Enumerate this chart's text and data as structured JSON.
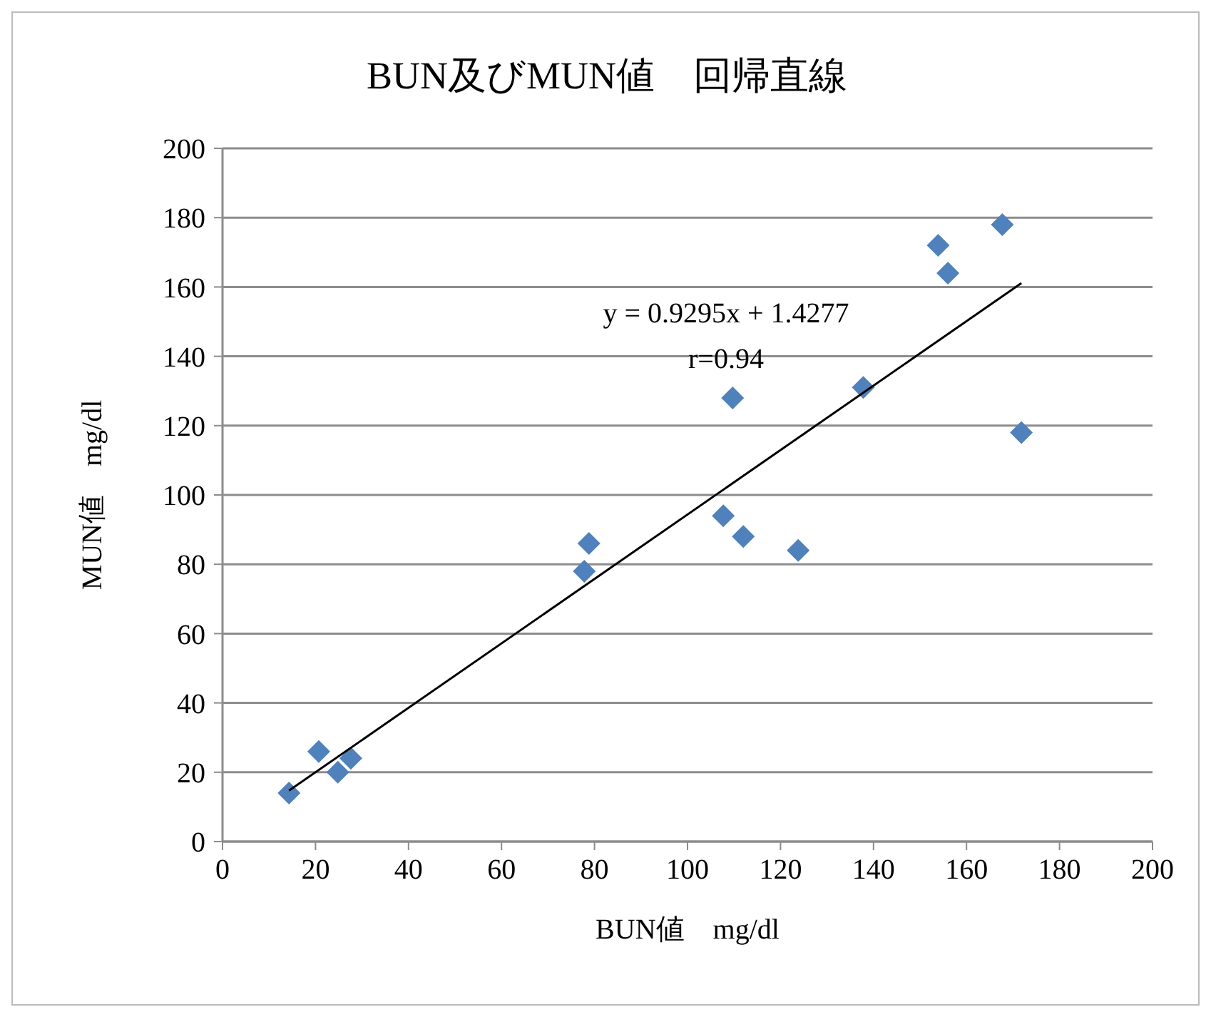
{
  "chart_data": {
    "type": "scatter",
    "title": "BUN及びMUN値　回帰直線",
    "xlabel": "BUN値　mg/dl",
    "ylabel": "MUN値　mg/dl",
    "xlim": [
      0,
      200
    ],
    "xticks": [
      0,
      20,
      40,
      60,
      80,
      100,
      120,
      140,
      160,
      180,
      200
    ],
    "ylim": [
      0,
      200
    ],
    "yticks": [
      0,
      20,
      40,
      60,
      80,
      100,
      120,
      140,
      160,
      180,
      200
    ],
    "grid": "y",
    "legend": false,
    "marker": "diamond",
    "annotations": [
      "y = 0.9295x + 1.4277",
      "r=0.94"
    ],
    "series": [
      {
        "type": "scatter",
        "color": "#4f81bd",
        "x": [
          14.3,
          20.7,
          24.8,
          27.6,
          77.8,
          78.8,
          107.7,
          109.7,
          112,
          123.8,
          137.8,
          153.9,
          156,
          167.7,
          171.8
        ],
        "values": [
          14,
          26,
          20,
          24,
          78,
          86,
          94,
          128,
          88,
          84,
          131,
          172,
          164,
          178,
          118
        ]
      },
      {
        "type": "line",
        "color": "#000000",
        "marker": "none",
        "x": [
          14.3,
          171.8
        ],
        "values": [
          14.7,
          161.1
        ]
      }
    ]
  }
}
